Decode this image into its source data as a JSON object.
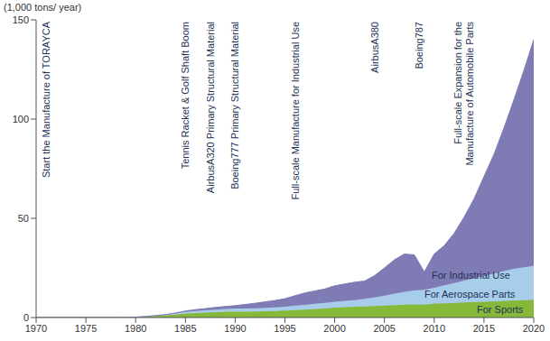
{
  "chart_data": {
    "type": "area",
    "stacked": true,
    "y_label": "(1,000 tons/ year)",
    "x": [
      1970,
      1971,
      1972,
      1973,
      1974,
      1975,
      1976,
      1977,
      1978,
      1979,
      1980,
      1981,
      1982,
      1983,
      1984,
      1985,
      1986,
      1987,
      1988,
      1989,
      1990,
      1991,
      1992,
      1993,
      1994,
      1995,
      1996,
      1997,
      1998,
      1999,
      2000,
      2001,
      2002,
      2003,
      2004,
      2005,
      2006,
      2007,
      2008,
      2009,
      2010,
      2011,
      2012,
      2013,
      2014,
      2015,
      2016,
      2017,
      2018,
      2019,
      2020
    ],
    "xlim": [
      1970,
      2020
    ],
    "xticks": [
      1970,
      1975,
      1980,
      1985,
      1990,
      1995,
      2000,
      2005,
      2010,
      2015,
      2020
    ],
    "ylim": [
      0,
      150
    ],
    "yticks": [
      0,
      50,
      100,
      150
    ],
    "grid": false,
    "series": [
      {
        "name": "For Sports",
        "color": "#86b83a",
        "values": [
          0,
          0,
          0,
          0,
          0,
          0,
          0,
          0,
          0,
          0,
          0.2,
          0.5,
          0.8,
          1.1,
          1.5,
          2,
          2.3,
          2.5,
          2.7,
          2.9,
          3,
          3,
          3.1,
          3.2,
          3.3,
          3.5,
          3.8,
          4,
          4.3,
          4.6,
          5,
          5.2,
          5.4,
          5.6,
          5.8,
          6,
          6.3,
          6.5,
          6.6,
          6.5,
          7,
          7.2,
          7.4,
          7.6,
          7.8,
          8,
          8.2,
          8.4,
          8.6,
          8.8,
          9
        ]
      },
      {
        "name": "For Aerospace Parts",
        "color": "#a7cdea",
        "values": [
          0,
          0,
          0,
          0,
          0,
          0,
          0,
          0,
          0,
          0,
          0,
          0,
          0.2,
          0.3,
          0.5,
          0.8,
          1,
          1.1,
          1.3,
          1.4,
          1.5,
          1.6,
          1.6,
          1.7,
          1.8,
          2,
          2.2,
          2.4,
          2.6,
          2.8,
          3,
          3.2,
          3.4,
          3.8,
          4.3,
          5,
          5.8,
          6.5,
          7,
          7.5,
          8,
          9,
          10,
          11,
          12,
          13,
          14,
          15,
          16,
          16.5,
          17
        ]
      },
      {
        "name": "For Industrial Use",
        "color": "#7f7bb5",
        "values": [
          0,
          0,
          0,
          0,
          0,
          0,
          0,
          0,
          0,
          0,
          0,
          0,
          0,
          0.1,
          0.3,
          0.5,
          0.7,
          0.9,
          1.1,
          1.3,
          1.5,
          2,
          2.5,
          3,
          3.5,
          4,
          5,
          6,
          6.5,
          7,
          8,
          8.5,
          9,
          9,
          11,
          14,
          17,
          19,
          18,
          9,
          17,
          20,
          25,
          32,
          40,
          50,
          60,
          72,
          85,
          99,
          114
        ]
      }
    ],
    "annotations": [
      {
        "x": 1971,
        "text": "Start the Manufacture of TORAYCA"
      },
      {
        "x": 1985,
        "text": "Tennis Racket & Golf Shaft Boom"
      },
      {
        "x": 1987.5,
        "text": "AirbusA320 Primary Structural Material"
      },
      {
        "x": 1990,
        "text": "Boeing777 Primary Structural Material"
      },
      {
        "x": 1996,
        "text": "Full-scale Manufacture for Industrial Use"
      },
      {
        "x": 2004,
        "text": "AirbusA380"
      },
      {
        "x": 2008.5,
        "text": "Boeing787"
      },
      {
        "x": 2013,
        "text": "Full-scale Expansion for the Manufacture of Automobile Parts"
      }
    ]
  }
}
